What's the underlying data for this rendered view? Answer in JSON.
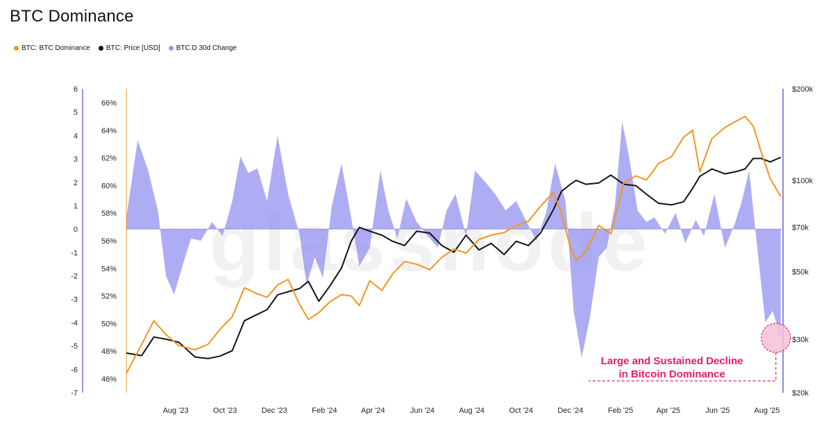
{
  "colors": {
    "dominance": "#f0961e",
    "price": "#111111",
    "change": "#9a98f0",
    "annotation": "#e61b6e",
    "highlight_fill": "#f7bfd6"
  },
  "chart_data": {
    "type": "line",
    "title": "BTC Dominance",
    "legend_placement": "top-left",
    "grid": false,
    "watermark": "glassnode",
    "x_range": [
      "2023-06-01",
      "2025-08-20"
    ],
    "x_tick_labels": [
      "Aug '23",
      "Oct '23",
      "Dec '23",
      "Feb '24",
      "Apr '24",
      "Jun '24",
      "Aug '24",
      "Oct '24",
      "Dec '24",
      "Feb '25",
      "Apr '25",
      "Jun '25",
      "Aug '25"
    ],
    "x_tick_dates": [
      "2023-08-01",
      "2023-10-01",
      "2023-12-01",
      "2024-02-01",
      "2024-04-01",
      "2024-06-01",
      "2024-08-01",
      "2024-10-01",
      "2024-12-01",
      "2025-02-01",
      "2025-04-01",
      "2025-06-01",
      "2025-08-01"
    ],
    "axes": {
      "left_change": {
        "min": -7,
        "max": 6,
        "ticks": [
          -7,
          -6,
          -5,
          -4,
          -3,
          -2,
          -1,
          0,
          1,
          2,
          3,
          4,
          5,
          6
        ],
        "labels": [
          "-7",
          "-6",
          "-5",
          "-4",
          "-3",
          "-2",
          "-1",
          "0",
          "1",
          "2",
          "3",
          "4",
          "5",
          "6"
        ]
      },
      "left_dominance": {
        "min": 45,
        "max": 67,
        "ticks": [
          46,
          48,
          50,
          52,
          54,
          56,
          58,
          60,
          62,
          64,
          66
        ],
        "labels": [
          "46%",
          "48%",
          "50%",
          "52%",
          "54%",
          "56%",
          "58%",
          "60%",
          "62%",
          "64%",
          "66%"
        ]
      },
      "right_price": {
        "scale": "log",
        "min": 20000,
        "max": 200000,
        "ticks": [
          20000,
          30000,
          50000,
          70000,
          100000,
          200000
        ],
        "labels": [
          "$20k",
          "$30k",
          "$50k",
          "$70k",
          "$100k",
          "$200k"
        ]
      }
    },
    "series": [
      {
        "name": "BTC: BTC Dominance",
        "type": "line",
        "axis": "left_dominance",
        "x": [
          "2023-06-01",
          "2023-06-20",
          "2023-07-05",
          "2023-07-20",
          "2023-08-05",
          "2023-08-25",
          "2023-09-10",
          "2023-09-25",
          "2023-10-10",
          "2023-10-25",
          "2023-11-08",
          "2023-11-22",
          "2023-12-05",
          "2023-12-18",
          "2024-01-01",
          "2024-01-12",
          "2024-01-25",
          "2024-02-08",
          "2024-02-22",
          "2024-03-05",
          "2024-03-15",
          "2024-03-28",
          "2024-04-12",
          "2024-04-25",
          "2024-05-10",
          "2024-05-25",
          "2024-06-10",
          "2024-06-25",
          "2024-07-10",
          "2024-07-25",
          "2024-08-10",
          "2024-08-25",
          "2024-09-10",
          "2024-09-25",
          "2024-10-10",
          "2024-10-25",
          "2024-11-10",
          "2024-11-20",
          "2024-12-01",
          "2024-12-08",
          "2024-12-20",
          "2025-01-05",
          "2025-01-20",
          "2025-02-05",
          "2025-02-20",
          "2025-03-05",
          "2025-03-20",
          "2025-04-05",
          "2025-04-20",
          "2025-05-01",
          "2025-05-10",
          "2025-05-25",
          "2025-06-10",
          "2025-06-25",
          "2025-07-05",
          "2025-07-15",
          "2025-07-25",
          "2025-08-05",
          "2025-08-18"
        ],
        "values": [
          46.4,
          48.5,
          50.2,
          49.2,
          48.4,
          48.1,
          48.5,
          49.6,
          50.5,
          52.6,
          52.2,
          51.9,
          52.8,
          53.2,
          51.4,
          50.3,
          50.8,
          51.6,
          52.1,
          52.0,
          51.3,
          53.1,
          52.4,
          53.6,
          54.5,
          54.3,
          53.9,
          54.8,
          55.4,
          55.1,
          56.1,
          56.4,
          56.6,
          57.1,
          57.4,
          58.5,
          59.5,
          58.0,
          55.5,
          54.6,
          55.2,
          57.1,
          56.5,
          60.2,
          60.7,
          60.4,
          61.6,
          62.1,
          63.5,
          64.0,
          61.0,
          63.4,
          64.2,
          64.7,
          65.0,
          64.3,
          62.4,
          60.5,
          59.2
        ]
      },
      {
        "name": "BTC: Price [USD]",
        "type": "line",
        "axis": "right_price",
        "x": [
          "2023-06-01",
          "2023-06-20",
          "2023-07-05",
          "2023-07-20",
          "2023-08-05",
          "2023-08-25",
          "2023-09-10",
          "2023-09-25",
          "2023-10-10",
          "2023-10-25",
          "2023-11-08",
          "2023-11-22",
          "2023-12-05",
          "2023-12-18",
          "2024-01-01",
          "2024-01-12",
          "2024-01-25",
          "2024-02-08",
          "2024-02-22",
          "2024-03-05",
          "2024-03-15",
          "2024-03-28",
          "2024-04-12",
          "2024-04-25",
          "2024-05-10",
          "2024-05-25",
          "2024-06-10",
          "2024-06-25",
          "2024-07-10",
          "2024-07-25",
          "2024-08-10",
          "2024-08-25",
          "2024-09-10",
          "2024-09-25",
          "2024-10-10",
          "2024-10-25",
          "2024-11-10",
          "2024-11-20",
          "2024-12-01",
          "2024-12-08",
          "2024-12-20",
          "2025-01-05",
          "2025-01-20",
          "2025-02-05",
          "2025-02-20",
          "2025-03-05",
          "2025-03-20",
          "2025-04-05",
          "2025-04-20",
          "2025-05-01",
          "2025-05-10",
          "2025-05-25",
          "2025-06-10",
          "2025-06-25",
          "2025-07-05",
          "2025-07-15",
          "2025-07-25",
          "2025-08-05",
          "2025-08-18"
        ],
        "values": [
          27000,
          26500,
          30500,
          30000,
          29300,
          26200,
          25900,
          26400,
          27500,
          34500,
          36000,
          37500,
          42000,
          43000,
          44000,
          46500,
          40000,
          45000,
          51500,
          63000,
          70000,
          68000,
          66000,
          63000,
          61000,
          68000,
          67000,
          61000,
          58000,
          66000,
          59000,
          62000,
          57000,
          63000,
          61000,
          67000,
          80000,
          92000,
          97000,
          100000,
          97000,
          98000,
          104000,
          97000,
          96000,
          90000,
          84000,
          83000,
          85000,
          94000,
          103000,
          109000,
          105000,
          107000,
          109000,
          118000,
          118000,
          115000,
          119000
        ]
      },
      {
        "name": "BTC.D 30d Change",
        "type": "area",
        "axis": "left_change",
        "x": [
          "2023-06-01",
          "2023-06-15",
          "2023-06-28",
          "2023-07-10",
          "2023-07-20",
          "2023-07-30",
          "2023-08-10",
          "2023-08-20",
          "2023-09-01",
          "2023-09-15",
          "2023-09-28",
          "2023-10-10",
          "2023-10-20",
          "2023-10-30",
          "2023-11-10",
          "2023-11-22",
          "2023-12-05",
          "2023-12-18",
          "2024-01-01",
          "2024-01-10",
          "2024-01-20",
          "2024-01-30",
          "2024-02-10",
          "2024-02-22",
          "2024-03-05",
          "2024-03-15",
          "2024-03-28",
          "2024-04-10",
          "2024-04-20",
          "2024-05-01",
          "2024-05-12",
          "2024-05-25",
          "2024-06-08",
          "2024-06-20",
          "2024-07-01",
          "2024-07-12",
          "2024-07-25",
          "2024-08-05",
          "2024-08-18",
          "2024-08-30",
          "2024-09-12",
          "2024-09-25",
          "2024-10-08",
          "2024-10-20",
          "2024-11-01",
          "2024-11-12",
          "2024-11-25",
          "2024-12-05",
          "2024-12-15",
          "2024-12-25",
          "2025-01-05",
          "2025-01-15",
          "2025-01-25",
          "2025-02-03",
          "2025-02-12",
          "2025-02-22",
          "2025-03-05",
          "2025-03-15",
          "2025-03-28",
          "2025-04-10",
          "2025-04-22",
          "2025-05-05",
          "2025-05-15",
          "2025-05-28",
          "2025-06-10",
          "2025-06-22",
          "2025-07-01",
          "2025-07-10",
          "2025-07-20",
          "2025-07-30",
          "2025-08-08",
          "2025-08-18"
        ],
        "values": [
          0.5,
          3.8,
          2.5,
          0.8,
          -2.0,
          -2.8,
          -1.5,
          -0.4,
          -0.5,
          0.3,
          -0.3,
          1.2,
          3.1,
          2.4,
          2.6,
          1.2,
          4.0,
          1.5,
          -0.2,
          -2.4,
          -1.2,
          -2.1,
          1.0,
          2.8,
          0.5,
          -1.6,
          -0.8,
          2.5,
          0.8,
          -0.4,
          1.3,
          0.3,
          -0.3,
          -0.8,
          0.8,
          1.5,
          -0.3,
          2.5,
          2.0,
          1.5,
          0.8,
          1.2,
          0.3,
          -0.5,
          0.7,
          2.8,
          1.2,
          -3.5,
          -5.5,
          -3.8,
          -1.2,
          -0.8,
          1.0,
          4.6,
          3.0,
          0.8,
          0.3,
          0.5,
          -0.2,
          0.7,
          -0.6,
          0.4,
          -0.3,
          1.5,
          -0.8,
          0.2,
          1.2,
          2.5,
          -0.8,
          -4.0,
          -3.5,
          -4.6
        ]
      }
    ],
    "annotations": [
      {
        "text": "Large and Sustained Decline",
        "x": "2025-08-12"
      },
      {
        "text": "in Bitcoin Dominance",
        "x": "2025-08-12"
      }
    ]
  }
}
